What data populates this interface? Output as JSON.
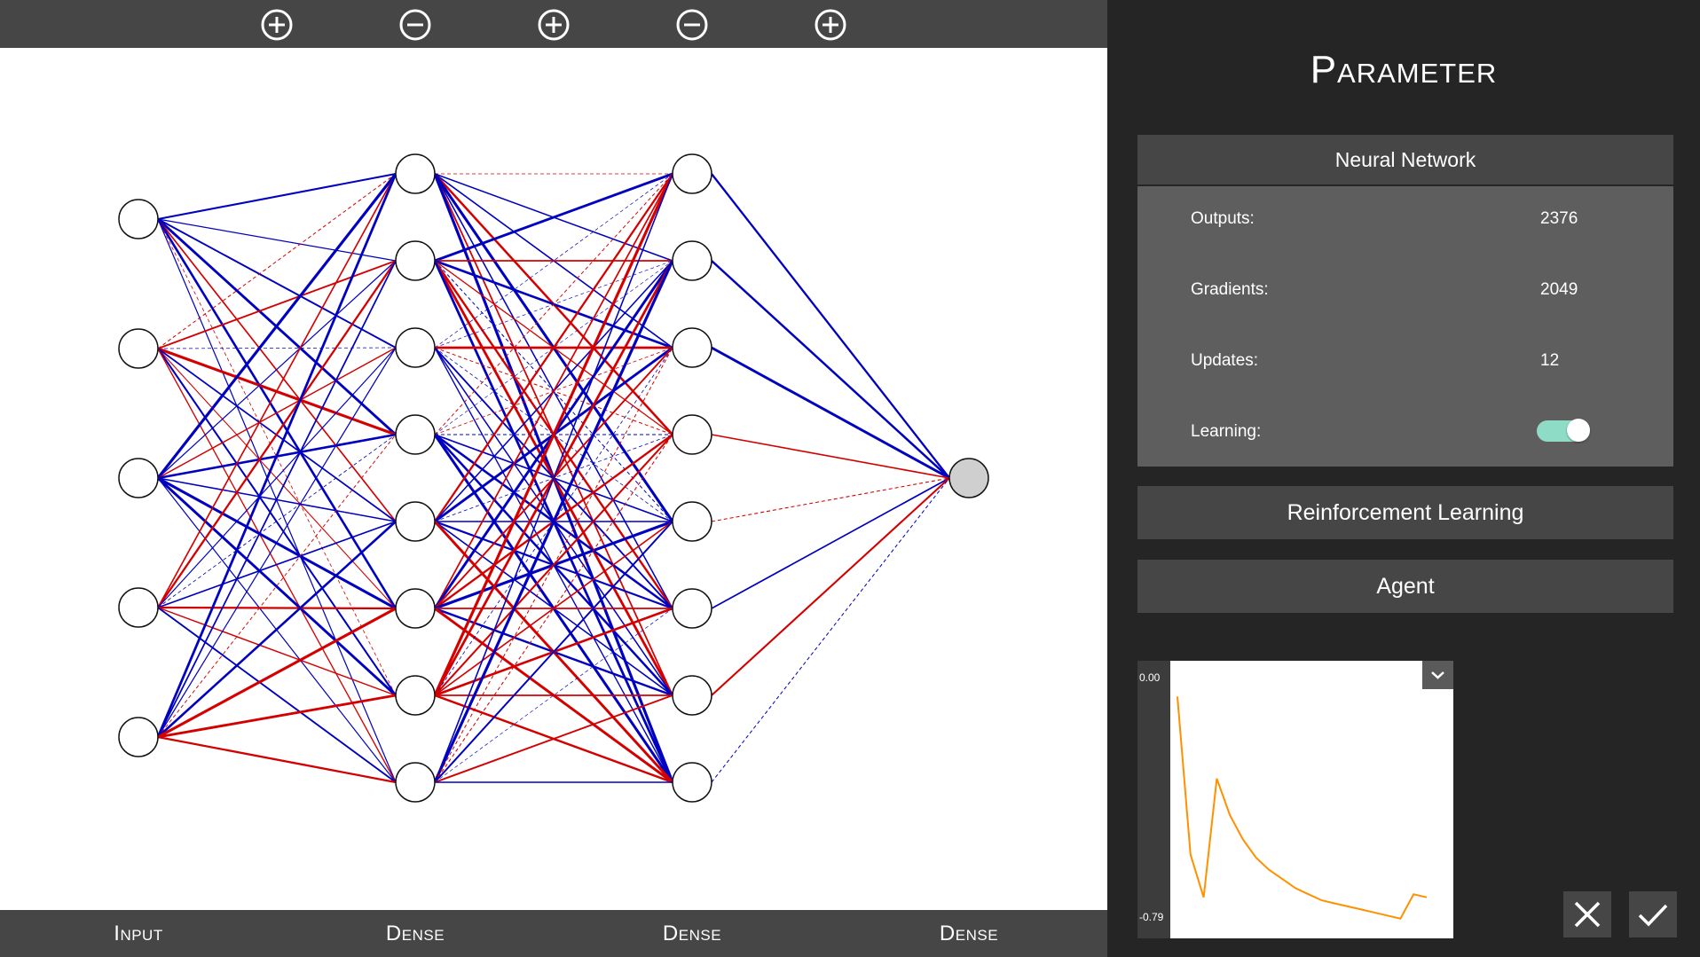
{
  "toolbar": {
    "buttons": [
      {
        "name": "plus-icon"
      },
      {
        "name": "minus-icon"
      },
      {
        "name": "plus-icon"
      },
      {
        "name": "minus-icon"
      },
      {
        "name": "plus-icon"
      }
    ]
  },
  "layers": [
    {
      "label": "Input",
      "neurons": 5
    },
    {
      "label": "Dense",
      "neurons": 8
    },
    {
      "label": "Dense",
      "neurons": 8
    },
    {
      "label": "Dense",
      "neurons": 1
    }
  ],
  "colors": {
    "positive_weight": "#d40000",
    "negative_weight": "#0000c0",
    "loss_line": "#ff9000",
    "toggle_on": "#8fdcc6"
  },
  "panel": {
    "title": "Parameter",
    "neural_network": {
      "header": "Neural Network",
      "outputs_label": "Outputs:",
      "outputs_value": "2376",
      "gradients_label": "Gradients:",
      "gradients_value": "2049",
      "updates_label": "Updates:",
      "updates_value": "12",
      "learning_label": "Learning:",
      "learning_enabled": true
    },
    "reinforcement_learning": {
      "header": "Reinforcement Learning"
    },
    "agent": {
      "header": "Agent"
    }
  },
  "chart_data": {
    "type": "line",
    "y_max_label": "0.00",
    "y_min_label": "-0.79",
    "ylim": [
      -0.79,
      0.0
    ],
    "x": [
      0,
      1,
      2,
      3,
      4,
      5,
      6,
      7,
      8,
      9,
      10,
      11,
      12,
      13,
      14,
      15,
      16,
      17,
      18,
      19
    ],
    "values": [
      -0.03,
      -0.55,
      -0.69,
      -0.3,
      -0.42,
      -0.5,
      -0.56,
      -0.6,
      -0.63,
      -0.66,
      -0.68,
      -0.7,
      -0.71,
      -0.72,
      -0.73,
      -0.74,
      -0.75,
      -0.76,
      -0.68,
      -0.69
    ]
  },
  "actions": {
    "cancel": "close-icon",
    "confirm": "check-icon"
  }
}
